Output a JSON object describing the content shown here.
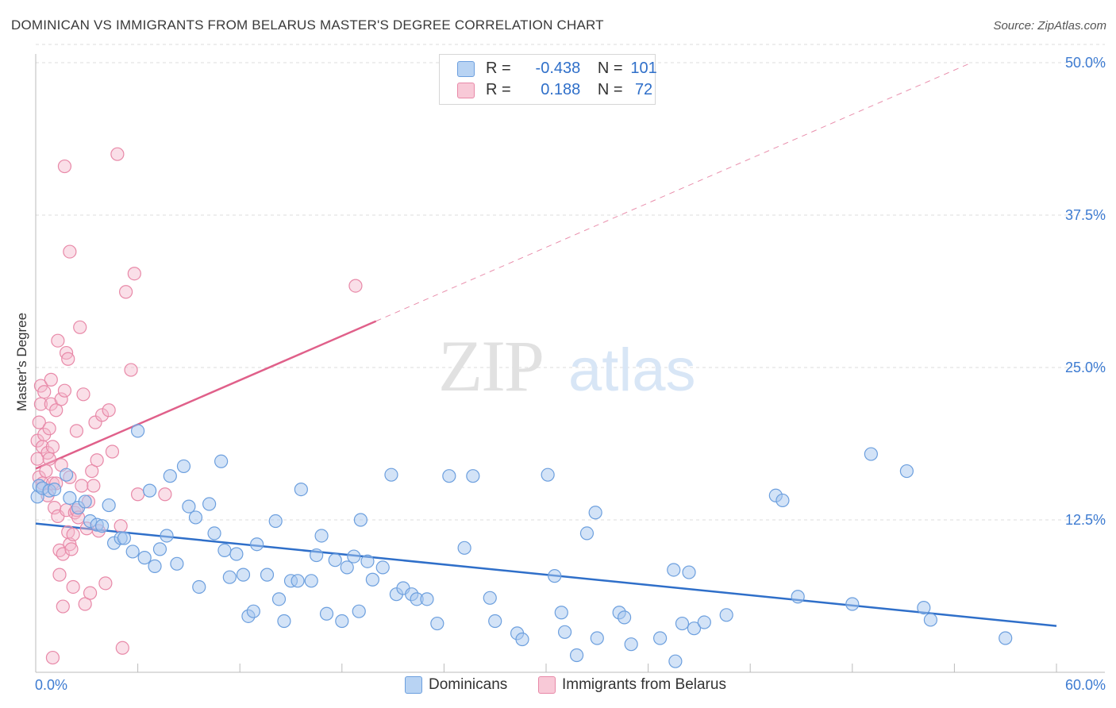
{
  "header": {
    "title": "DOMINICAN VS IMMIGRANTS FROM BELARUS MASTER'S DEGREE CORRELATION CHART",
    "source": "Source: ZipAtlas.com"
  },
  "legend": {
    "rows": [
      {
        "r_label": "R =",
        "r_value": "-0.438",
        "n_label": "N =",
        "n_value": "101"
      },
      {
        "r_label": "R =",
        "r_value": "0.188",
        "n_label": "N =",
        "n_value": "72"
      }
    ]
  },
  "bottom_legend": {
    "dominicans": "Dominicans",
    "belarus": "Immigrants from Belarus"
  },
  "watermark": {
    "zip": "ZIP",
    "atlas": "atlas"
  },
  "colors": {
    "dominicans_fill": "#a8c8f0",
    "dominicans_stroke": "#6c9fde",
    "dominicans_line": "#2f6fc9",
    "belarus_fill": "#f5b8cb",
    "belarus_stroke": "#e889a8",
    "belarus_line": "#e0608a",
    "tick_label": "#3d7bd1",
    "grid": "#dddddd"
  },
  "chart_data": {
    "type": "scatter",
    "title": "DOMINICAN VS IMMIGRANTS FROM BELARUS MASTER'S DEGREE CORRELATION CHART",
    "xlabel": "",
    "ylabel": "Master's Degree",
    "xlim": [
      0,
      60
    ],
    "ylim": [
      0,
      52
    ],
    "x_tick_labels": [
      "0.0%",
      "60.0%"
    ],
    "y_ticks": [
      12.5,
      25.0,
      37.5,
      50.0
    ],
    "y_tick_labels": [
      "12.5%",
      "25.0%",
      "37.5%",
      "50.0%"
    ],
    "series": [
      {
        "name": "Dominicans",
        "r": -0.438,
        "n": 101,
        "trend": {
          "x": [
            0,
            60
          ],
          "y": [
            12.2,
            3.8
          ],
          "style": "solid"
        },
        "points": [
          [
            0.1,
            14.4
          ],
          [
            0.2,
            15.3
          ],
          [
            0.4,
            15.1
          ],
          [
            0.8,
            14.9
          ],
          [
            1.1,
            15.0
          ],
          [
            1.8,
            16.2
          ],
          [
            2.0,
            14.3
          ],
          [
            2.5,
            13.5
          ],
          [
            2.9,
            14.0
          ],
          [
            3.2,
            12.4
          ],
          [
            3.6,
            12.1
          ],
          [
            3.9,
            12.0
          ],
          [
            4.3,
            13.7
          ],
          [
            4.6,
            10.6
          ],
          [
            5.0,
            11.0
          ],
          [
            5.2,
            11.0
          ],
          [
            5.7,
            9.9
          ],
          [
            6.0,
            19.8
          ],
          [
            6.4,
            9.4
          ],
          [
            6.7,
            14.9
          ],
          [
            7.0,
            8.7
          ],
          [
            7.3,
            10.1
          ],
          [
            7.7,
            11.2
          ],
          [
            7.9,
            16.1
          ],
          [
            8.3,
            8.9
          ],
          [
            8.7,
            16.9
          ],
          [
            9.0,
            13.6
          ],
          [
            9.4,
            12.7
          ],
          [
            9.6,
            7.0
          ],
          [
            10.2,
            13.8
          ],
          [
            10.5,
            11.4
          ],
          [
            10.9,
            17.3
          ],
          [
            11.1,
            10.0
          ],
          [
            11.4,
            7.8
          ],
          [
            11.8,
            9.7
          ],
          [
            12.2,
            8.0
          ],
          [
            12.5,
            4.6
          ],
          [
            12.8,
            5.0
          ],
          [
            13.0,
            10.5
          ],
          [
            13.6,
            8.0
          ],
          [
            14.1,
            12.4
          ],
          [
            14.3,
            6.0
          ],
          [
            14.6,
            4.2
          ],
          [
            15.0,
            7.5
          ],
          [
            15.4,
            7.5
          ],
          [
            15.6,
            15.0
          ],
          [
            16.2,
            7.5
          ],
          [
            16.5,
            9.6
          ],
          [
            16.8,
            11.2
          ],
          [
            17.1,
            4.8
          ],
          [
            17.6,
            9.2
          ],
          [
            18.0,
            4.2
          ],
          [
            18.3,
            8.6
          ],
          [
            18.7,
            9.5
          ],
          [
            19.0,
            5.0
          ],
          [
            19.1,
            12.5
          ],
          [
            19.5,
            9.1
          ],
          [
            19.8,
            7.6
          ],
          [
            20.4,
            8.6
          ],
          [
            20.9,
            16.2
          ],
          [
            21.2,
            6.4
          ],
          [
            21.6,
            6.9
          ],
          [
            22.1,
            6.4
          ],
          [
            22.4,
            6.0
          ],
          [
            23.0,
            6.0
          ],
          [
            23.6,
            4.0
          ],
          [
            24.3,
            16.1
          ],
          [
            25.2,
            10.2
          ],
          [
            25.7,
            16.1
          ],
          [
            26.7,
            6.1
          ],
          [
            27.0,
            4.2
          ],
          [
            28.3,
            3.2
          ],
          [
            28.6,
            2.7
          ],
          [
            30.1,
            16.2
          ],
          [
            30.5,
            7.9
          ],
          [
            30.9,
            4.9
          ],
          [
            31.1,
            3.3
          ],
          [
            31.8,
            1.4
          ],
          [
            32.4,
            11.4
          ],
          [
            32.9,
            13.1
          ],
          [
            33.0,
            2.8
          ],
          [
            34.3,
            4.9
          ],
          [
            34.6,
            4.5
          ],
          [
            35.0,
            2.3
          ],
          [
            36.7,
            2.8
          ],
          [
            37.5,
            8.4
          ],
          [
            38.0,
            4.0
          ],
          [
            38.4,
            8.2
          ],
          [
            38.7,
            3.6
          ],
          [
            39.3,
            4.1
          ],
          [
            40.6,
            4.7
          ],
          [
            43.5,
            14.5
          ],
          [
            43.9,
            14.1
          ],
          [
            44.8,
            6.2
          ],
          [
            48.0,
            5.6
          ],
          [
            49.1,
            17.9
          ],
          [
            51.2,
            16.5
          ],
          [
            52.2,
            5.3
          ],
          [
            52.6,
            4.3
          ],
          [
            57.0,
            2.8
          ],
          [
            37.6,
            0.9
          ]
        ]
      },
      {
        "name": "Immigrants from Belarus",
        "r": 0.188,
        "n": 72,
        "trend": {
          "x": [
            0,
            20
          ],
          "y": [
            16.7,
            28.8
          ],
          "style": "solid",
          "extension": {
            "x": [
              20,
              55
            ],
            "y": [
              28.8,
              50.0
            ],
            "style": "dashed"
          }
        },
        "points": [
          [
            0.1,
            19.0
          ],
          [
            0.1,
            17.5
          ],
          [
            0.2,
            16.0
          ],
          [
            0.2,
            20.5
          ],
          [
            0.3,
            22.0
          ],
          [
            0.3,
            23.5
          ],
          [
            0.4,
            18.5
          ],
          [
            0.4,
            15.5
          ],
          [
            0.5,
            19.5
          ],
          [
            0.5,
            23.0
          ],
          [
            0.6,
            16.5
          ],
          [
            0.7,
            18.0
          ],
          [
            0.7,
            14.5
          ],
          [
            0.8,
            20.0
          ],
          [
            0.8,
            17.5
          ],
          [
            0.9,
            24.0
          ],
          [
            0.9,
            22.0
          ],
          [
            1.0,
            15.5
          ],
          [
            1.0,
            18.5
          ],
          [
            1.1,
            13.5
          ],
          [
            1.2,
            21.5
          ],
          [
            1.2,
            15.5
          ],
          [
            1.3,
            12.8
          ],
          [
            1.3,
            27.2
          ],
          [
            1.4,
            10.0
          ],
          [
            1.4,
            8.0
          ],
          [
            1.5,
            22.4
          ],
          [
            1.5,
            17.0
          ],
          [
            1.6,
            9.7
          ],
          [
            1.6,
            5.4
          ],
          [
            1.7,
            23.1
          ],
          [
            1.7,
            41.5
          ],
          [
            1.8,
            13.3
          ],
          [
            1.8,
            26.2
          ],
          [
            1.9,
            11.5
          ],
          [
            1.9,
            25.7
          ],
          [
            2.0,
            10.5
          ],
          [
            2.0,
            16.0
          ],
          [
            2.1,
            10.1
          ],
          [
            2.2,
            7.0
          ],
          [
            2.2,
            11.3
          ],
          [
            2.3,
            13.1
          ],
          [
            2.4,
            13.3
          ],
          [
            2.4,
            19.8
          ],
          [
            2.5,
            12.7
          ],
          [
            2.6,
            28.3
          ],
          [
            2.7,
            15.3
          ],
          [
            2.8,
            22.8
          ],
          [
            2.9,
            5.6
          ],
          [
            3.0,
            11.8
          ],
          [
            3.1,
            14.0
          ],
          [
            3.2,
            6.5
          ],
          [
            3.3,
            16.5
          ],
          [
            3.4,
            15.3
          ],
          [
            3.5,
            20.5
          ],
          [
            3.6,
            17.4
          ],
          [
            3.7,
            11.6
          ],
          [
            3.9,
            21.1
          ],
          [
            4.1,
            7.3
          ],
          [
            4.3,
            21.5
          ],
          [
            4.5,
            18.1
          ],
          [
            4.8,
            42.5
          ],
          [
            5.0,
            12.0
          ],
          [
            5.1,
            2.0
          ],
          [
            5.3,
            31.2
          ],
          [
            5.6,
            24.8
          ],
          [
            5.8,
            32.7
          ],
          [
            6.0,
            14.6
          ],
          [
            7.6,
            14.6
          ],
          [
            18.8,
            31.7
          ],
          [
            1.0,
            1.2
          ],
          [
            2.0,
            34.5
          ]
        ]
      }
    ]
  }
}
